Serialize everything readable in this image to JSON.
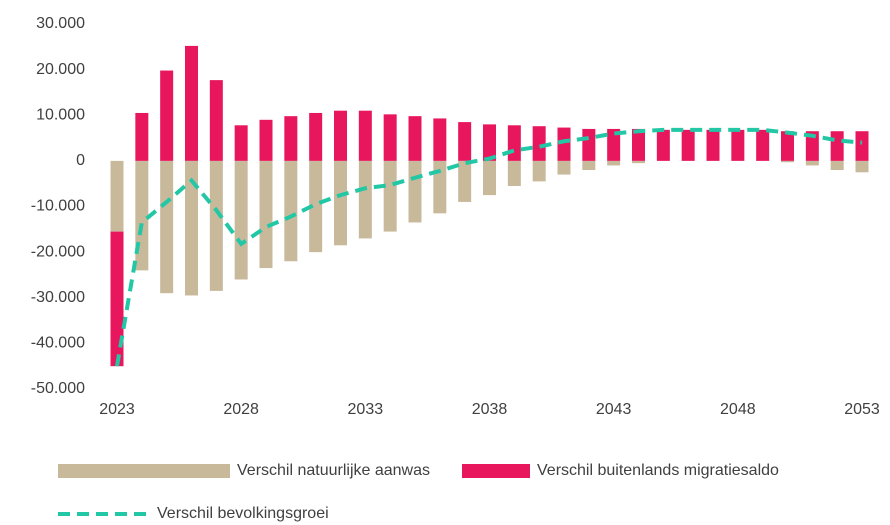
{
  "chart_data": {
    "type": "bar",
    "x": [
      2023,
      2024,
      2025,
      2026,
      2027,
      2028,
      2029,
      2030,
      2031,
      2032,
      2033,
      2034,
      2035,
      2036,
      2037,
      2038,
      2039,
      2040,
      2041,
      2042,
      2043,
      2044,
      2045,
      2046,
      2047,
      2048,
      2049,
      2050,
      2051,
      2052,
      2053
    ],
    "xlim": [
      2023,
      2053
    ],
    "xticks": [
      2023,
      2028,
      2033,
      2038,
      2043,
      2048,
      2053
    ],
    "ylim": [
      -50000,
      30000
    ],
    "yticks": [
      {
        "value": -50000,
        "label": "-50.000"
      },
      {
        "value": -40000,
        "label": "-40.000"
      },
      {
        "value": -30000,
        "label": "-30.000"
      },
      {
        "value": -20000,
        "label": "-20.000"
      },
      {
        "value": -10000,
        "label": "-10.000"
      },
      0,
      {
        "value": 10000,
        "label": "10.000"
      },
      {
        "value": 20000,
        "label": "20.000"
      },
      {
        "value": 30000,
        "label": "30.000"
      }
    ],
    "stacked": true,
    "series": [
      {
        "name": "Verschil natuurlijke aanwas",
        "type": "bar",
        "color": "#c9b99b",
        "values": [
          -15500,
          -24000,
          -29000,
          -29500,
          -28500,
          -26000,
          -23500,
          -22000,
          -20000,
          -18500,
          -17000,
          -15500,
          -13500,
          -11500,
          -9000,
          -7500,
          -5500,
          -4500,
          -3000,
          -2000,
          -1000,
          -500,
          0,
          0,
          0,
          0,
          0,
          -300,
          -1000,
          -2000,
          -2500
        ]
      },
      {
        "name": "Verschil buitenlands migratiesaldo",
        "type": "bar",
        "color": "#e8175d",
        "values": [
          -29500,
          10500,
          19800,
          25200,
          17700,
          7800,
          9000,
          9800,
          10500,
          11000,
          11000,
          10200,
          9800,
          9300,
          8500,
          8000,
          7800,
          7600,
          7300,
          7000,
          7000,
          7000,
          6800,
          6800,
          6800,
          6800,
          6800,
          6500,
          6500,
          6500,
          6500
        ]
      },
      {
        "name": "Verschil bevolkingsgroei",
        "type": "line",
        "color": "#22c7a5",
        "dashed": true,
        "values": [
          -45000,
          -13500,
          -9000,
          -4300,
          -10800,
          -18200,
          -14500,
          -12200,
          -9500,
          -7500,
          -6000,
          -5300,
          -3700,
          -2200,
          -500,
          500,
          2300,
          3100,
          4300,
          5000,
          6000,
          6500,
          6800,
          6800,
          6800,
          6800,
          6800,
          6200,
          5500,
          4500,
          4000
        ]
      }
    ]
  }
}
